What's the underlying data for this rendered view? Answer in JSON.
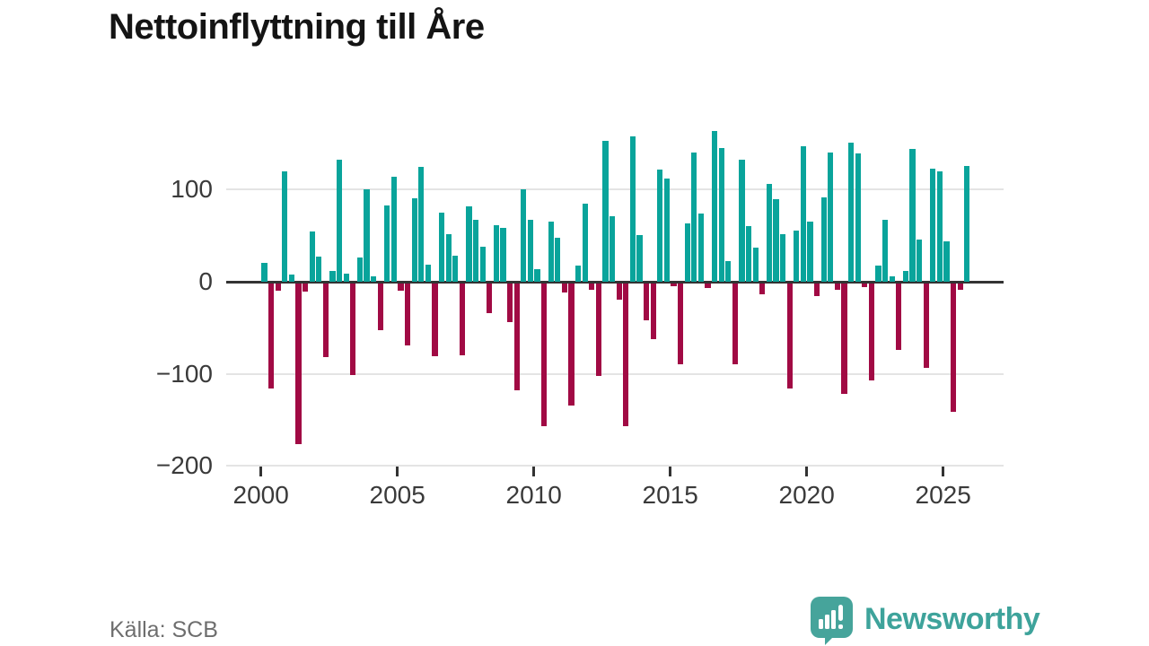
{
  "title": "Nettoinflyttning till Åre",
  "source": "Källa: SCB",
  "logo": {
    "text": "Newsworthy",
    "icon": "newsworthy-speech-bubble-barchart-icon"
  },
  "colors": {
    "positive": "#09a49b",
    "negative": "#a10a44",
    "axis": "#333333",
    "grid": "#e4e4e4",
    "logo_teal": "#3ea39b"
  },
  "chart_data": {
    "type": "bar",
    "title": "Nettoinflyttning till Åre",
    "xlabel": "",
    "ylabel": "",
    "ylim": [
      -205,
      170
    ],
    "frequency": "quarterly",
    "legend": "none",
    "grid": "horizontal",
    "y_ticks": [
      {
        "label": "100",
        "value": 100
      },
      {
        "label": "0",
        "value": 0
      },
      {
        "label": "−100",
        "value": -100
      },
      {
        "label": "−200",
        "value": -200
      }
    ],
    "x_ticks": [
      {
        "label": "2000",
        "year": 2000
      },
      {
        "label": "2005",
        "year": 2005
      },
      {
        "label": "2010",
        "year": 2010
      },
      {
        "label": "2015",
        "year": 2015
      },
      {
        "label": "2020",
        "year": 2020
      },
      {
        "label": "2025",
        "year": 2025
      }
    ],
    "categories": [
      "2000-Q1",
      "2000-Q2",
      "2000-Q3",
      "2000-Q4",
      "2001-Q1",
      "2001-Q2",
      "2001-Q3",
      "2001-Q4",
      "2002-Q1",
      "2002-Q2",
      "2002-Q3",
      "2002-Q4",
      "2003-Q1",
      "2003-Q2",
      "2003-Q3",
      "2003-Q4",
      "2004-Q1",
      "2004-Q2",
      "2004-Q3",
      "2004-Q4",
      "2005-Q1",
      "2005-Q2",
      "2005-Q3",
      "2005-Q4",
      "2006-Q1",
      "2006-Q2",
      "2006-Q3",
      "2006-Q4",
      "2007-Q1",
      "2007-Q2",
      "2007-Q3",
      "2007-Q4",
      "2008-Q1",
      "2008-Q2",
      "2008-Q3",
      "2008-Q4",
      "2009-Q1",
      "2009-Q2",
      "2009-Q3",
      "2009-Q4",
      "2010-Q1",
      "2010-Q2",
      "2010-Q3",
      "2010-Q4",
      "2011-Q1",
      "2011-Q2",
      "2011-Q3",
      "2011-Q4",
      "2012-Q1",
      "2012-Q2",
      "2012-Q3",
      "2012-Q4",
      "2013-Q1",
      "2013-Q2",
      "2013-Q3",
      "2013-Q4",
      "2014-Q1",
      "2014-Q2",
      "2014-Q3",
      "2014-Q4",
      "2015-Q1",
      "2015-Q2",
      "2015-Q3",
      "2015-Q4",
      "2016-Q1",
      "2016-Q2",
      "2016-Q3",
      "2016-Q4",
      "2017-Q1",
      "2017-Q2",
      "2017-Q3",
      "2017-Q4",
      "2018-Q1",
      "2018-Q2",
      "2018-Q3",
      "2018-Q4",
      "2019-Q1",
      "2019-Q2",
      "2019-Q3",
      "2019-Q4",
      "2020-Q1",
      "2020-Q2",
      "2020-Q3",
      "2020-Q4",
      "2021-Q1",
      "2021-Q2",
      "2021-Q3",
      "2021-Q4",
      "2022-Q1",
      "2022-Q2",
      "2022-Q3",
      "2022-Q4",
      "2023-Q1",
      "2023-Q2",
      "2023-Q3",
      "2023-Q4",
      "2024-Q1",
      "2024-Q2",
      "2024-Q3",
      "2024-Q4",
      "2025-Q1",
      "2025-Q2",
      "2025-Q3",
      "2025-Q4"
    ],
    "values": [
      20,
      -115,
      -8,
      120,
      8,
      -175,
      -9,
      55,
      27,
      -80,
      12,
      133,
      9,
      -100,
      26,
      100,
      6,
      -51,
      83,
      114,
      -8,
      -68,
      91,
      125,
      19,
      -79,
      75,
      52,
      28,
      -78,
      82,
      67,
      38,
      -33,
      61,
      58,
      -42,
      -116,
      100,
      67,
      14,
      -155,
      65,
      48,
      -10,
      -133,
      18,
      85,
      -7,
      -101,
      153,
      71,
      -18,
      -155,
      158,
      51,
      -40,
      -61,
      122,
      112,
      -3,
      -88,
      63,
      140,
      74,
      -5,
      164,
      145,
      22,
      -88,
      133,
      60,
      37,
      -12,
      106,
      90,
      52,
      -115,
      56,
      147,
      65,
      -14,
      92,
      140,
      -7,
      -120,
      151,
      139,
      -4,
      -106,
      18,
      67,
      6,
      -73,
      12,
      144,
      46,
      -92,
      123,
      120,
      44,
      -140,
      -7,
      126
    ]
  }
}
